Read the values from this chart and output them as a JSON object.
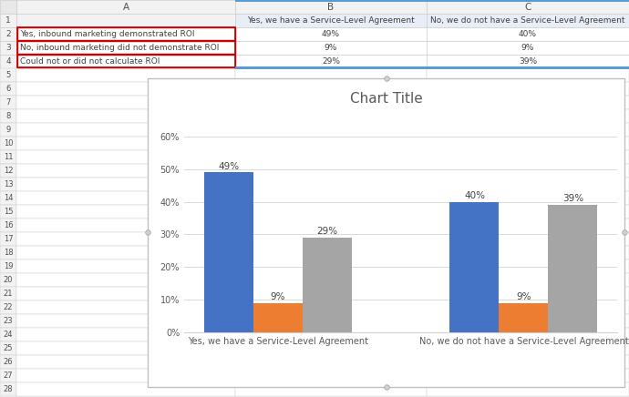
{
  "title": "Chart Title",
  "groups": [
    "Yes, we have a Service-Level Agreement",
    "No, we do not have a Service-Level Agreement"
  ],
  "series": [
    {
      "label": "Yes, inbound marketing demonstrated ROI",
      "values": [
        49,
        40
      ],
      "color": "#4472C4"
    },
    {
      "label": "No, inbound marketing did not demonstrate ROI",
      "values": [
        9,
        9
      ],
      "color": "#ED7D31"
    },
    {
      "label": "Could not or did not calculate ROI",
      "values": [
        29,
        39
      ],
      "color": "#A5A5A5"
    }
  ],
  "ylim": [
    0,
    70
  ],
  "yticks": [
    0,
    10,
    20,
    30,
    40,
    50,
    60
  ],
  "ytick_labels": [
    "0%",
    "10%",
    "20%",
    "30%",
    "40%",
    "50%",
    "60%"
  ],
  "spreadsheet": {
    "col_a_rows": [
      "",
      "Yes, inbound marketing demonstrated ROI",
      "No, inbound marketing did not demonstrate ROI",
      "Could not or did not calculate ROI"
    ],
    "col_b_header": "Yes, we have a Service-Level Agreement",
    "col_c_header": "No, we do not have a Service-Level Agreement",
    "col_b_values": [
      "49%",
      "9%",
      "29%"
    ],
    "col_c_values": [
      "40%",
      "9%",
      "39%"
    ]
  },
  "chart_bg": "#FFFFFF",
  "grid_color": "#D9D9D9",
  "title_fontsize": 11,
  "legend_fontsize": 7,
  "axis_fontsize": 7,
  "bar_width": 0.2,
  "annotation_fontsize": 7.5,
  "ss_bg": "#F2F2F2",
  "ss_header_bg": "#F2F2F2",
  "ss_row_bg": "#FFFFFF",
  "ss_col_bc_header_bg": "#E8EEF8",
  "ss_border": "#C8C8C8",
  "ss_red_border": "#CC0000",
  "ss_blue_top": "#5B9BD5",
  "row_nums": [
    "1",
    "2",
    "3",
    "4",
    "5",
    "6",
    "7",
    "8",
    "9",
    "10",
    "11",
    "12",
    "13",
    "14",
    "15",
    "16",
    "17",
    "18",
    "19",
    "20",
    "21",
    "22",
    "23",
    "24",
    "25",
    "26",
    "27",
    "28"
  ]
}
